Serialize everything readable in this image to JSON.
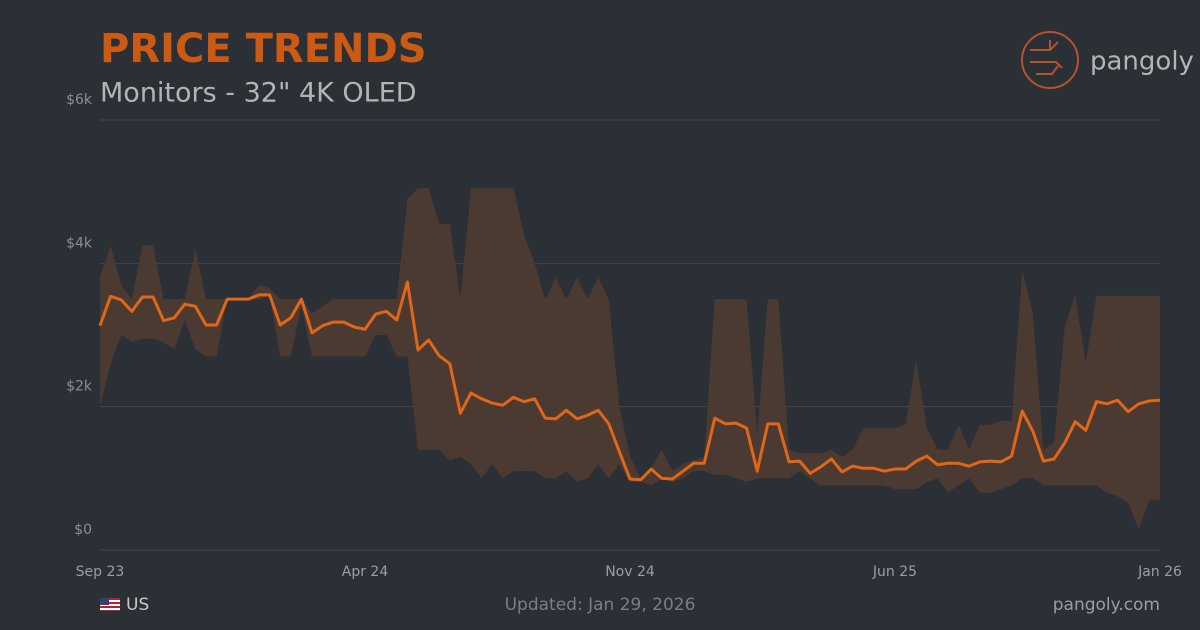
{
  "chart_data": {
    "type": "band-line",
    "title": "PRICE TRENDS",
    "subtitle": "Monitors - 32\" 4K OLED",
    "categories": [
      "Sep 23",
      null,
      null,
      null,
      null,
      null,
      null,
      null,
      null,
      null,
      null,
      null,
      null,
      null,
      null,
      null,
      null,
      null,
      null,
      null,
      null,
      null,
      null,
      null,
      null,
      "Apr 24",
      null,
      null,
      null,
      null,
      null,
      null,
      null,
      null,
      null,
      null,
      null,
      null,
      null,
      null,
      null,
      null,
      null,
      null,
      null,
      null,
      null,
      null,
      null,
      null,
      "Nov 24",
      null,
      null,
      null,
      null,
      null,
      null,
      null,
      null,
      null,
      null,
      null,
      null,
      null,
      null,
      null,
      null,
      null,
      null,
      null,
      null,
      null,
      null,
      null,
      null,
      "Jun 25",
      null,
      null,
      null,
      null,
      null,
      null,
      null,
      null,
      null,
      null,
      null,
      null,
      null,
      null,
      null,
      null,
      null,
      null,
      null,
      null,
      null,
      null,
      null,
      null,
      "Jan 26"
    ],
    "values": [
      3130,
      3540,
      3490,
      3330,
      3530,
      3530,
      3200,
      3240,
      3430,
      3400,
      3140,
      3140,
      3500,
      3500,
      3500,
      3560,
      3560,
      3140,
      3240,
      3500,
      3030,
      3130,
      3180,
      3180,
      3110,
      3080,
      3290,
      3330,
      3210,
      3740,
      2790,
      2930,
      2710,
      2600,
      1910,
      2190,
      2110,
      2050,
      2020,
      2130,
      2070,
      2110,
      1840,
      1830,
      1950,
      1830,
      1880,
      1950,
      1760,
      1370,
      990,
      980,
      1130,
      1000,
      990,
      1100,
      1210,
      1210,
      1840,
      1760,
      1770,
      1700,
      1100,
      1760,
      1760,
      1230,
      1240,
      1070,
      1160,
      1270,
      1090,
      1170,
      1140,
      1140,
      1100,
      1130,
      1130,
      1240,
      1310,
      1190,
      1210,
      1210,
      1170,
      1230,
      1240,
      1230,
      1310,
      1940,
      1660,
      1240,
      1270,
      1490,
      1790,
      1670,
      2070,
      2040,
      2090,
      1930,
      2040,
      2080,
      2090
    ],
    "high": [
      3800,
      4250,
      3700,
      3500,
      4250,
      4250,
      3500,
      3500,
      3500,
      4200,
      3500,
      3500,
      3500,
      3500,
      3500,
      3700,
      3650,
      3500,
      3500,
      3500,
      3300,
      3400,
      3500,
      3500,
      3500,
      3500,
      3500,
      3500,
      3500,
      4900,
      5050,
      5050,
      4550,
      4550,
      3500,
      5050,
      5050,
      5050,
      5050,
      5050,
      4400,
      4000,
      3500,
      3800,
      3500,
      3800,
      3500,
      3800,
      3500,
      2000,
      1300,
      1000,
      1150,
      1400,
      1100,
      1200,
      1250,
      1300,
      3500,
      3500,
      3500,
      3500,
      1600,
      3500,
      3500,
      1400,
      1350,
      1350,
      1350,
      1400,
      1300,
      1400,
      1700,
      1700,
      1700,
      1700,
      1750,
      2650,
      1700,
      1400,
      1400,
      1750,
      1400,
      1750,
      1750,
      1800,
      1800,
      3900,
      3300,
      1400,
      1500,
      3100,
      3550,
      2600,
      3550,
      3550,
      3550,
      3550,
      3550,
      3550,
      3550
    ],
    "low": [
      2000,
      2600,
      3000,
      2900,
      2950,
      2950,
      2900,
      2800,
      3200,
      2800,
      2700,
      2700,
      3500,
      3500,
      3500,
      3500,
      3550,
      2700,
      2700,
      3400,
      2700,
      2700,
      2700,
      2700,
      2700,
      2700,
      3000,
      3000,
      2700,
      2700,
      1400,
      1400,
      1400,
      1250,
      1300,
      1200,
      1000,
      1200,
      1000,
      1100,
      1100,
      1100,
      1000,
      1000,
      1100,
      950,
      1000,
      1200,
      1000,
      1200,
      950,
      950,
      900,
      1000,
      950,
      1000,
      1100,
      1100,
      1050,
      1050,
      1000,
      950,
      1000,
      1000,
      1000,
      1000,
      1100,
      1000,
      900,
      900,
      900,
      900,
      900,
      900,
      900,
      850,
      850,
      850,
      950,
      1000,
      800,
      900,
      1000,
      800,
      800,
      850,
      900,
      1000,
      1000,
      900,
      900,
      900,
      900,
      900,
      900,
      800,
      750,
      650,
      300,
      700,
      700
    ],
    "color": "#e0661a",
    "band_color": "#4b3a31",
    "ylim": [
      0,
      6000
    ],
    "yticks": [
      {
        "value": 0,
        "label": "$0"
      },
      {
        "value": 2000,
        "label": "$2k"
      },
      {
        "value": 4000,
        "label": "$4k"
      },
      {
        "value": 6000,
        "label": "$6k"
      }
    ],
    "grid": true
  },
  "brand": "pangoly",
  "footer": {
    "region": "US",
    "updated": "Updated: Jan 29, 2026",
    "site": "pangoly.com"
  }
}
